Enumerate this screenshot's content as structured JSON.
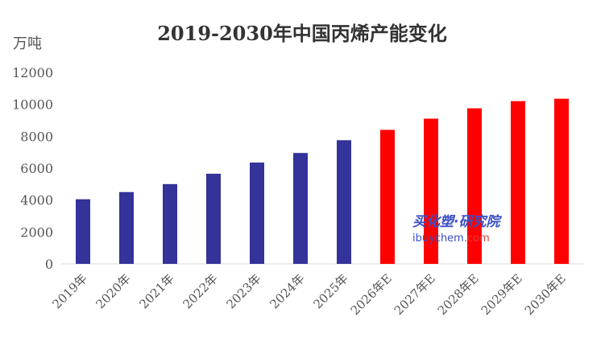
{
  "chart_data": {
    "type": "bar",
    "title": "2019-2030年中国丙烯产能变化",
    "ylabel": "万吨",
    "xlabel": "",
    "ylim": [
      0,
      12000
    ],
    "yticks": [
      "0",
      "2000",
      "4000",
      "6000",
      "8000",
      "10000",
      "12000"
    ],
    "grid": false,
    "categories": [
      "2019年",
      "2020年",
      "2021年",
      "2022年",
      "2023年",
      "2024年",
      "2025年",
      "2026年E",
      "2027年E",
      "2028年E",
      "2029年E",
      "2030年E"
    ],
    "values": [
      4050,
      4500,
      5000,
      5650,
      6350,
      6950,
      7750,
      8400,
      9100,
      9750,
      10200,
      10350
    ],
    "colors": {
      "actual": "#333399",
      "forecast": "#ff0000"
    },
    "actual_count": 7
  },
  "watermark": {
    "line1": "买化塑·研究院",
    "line2_a": "ibuychem",
    "line2_b": ".com"
  }
}
